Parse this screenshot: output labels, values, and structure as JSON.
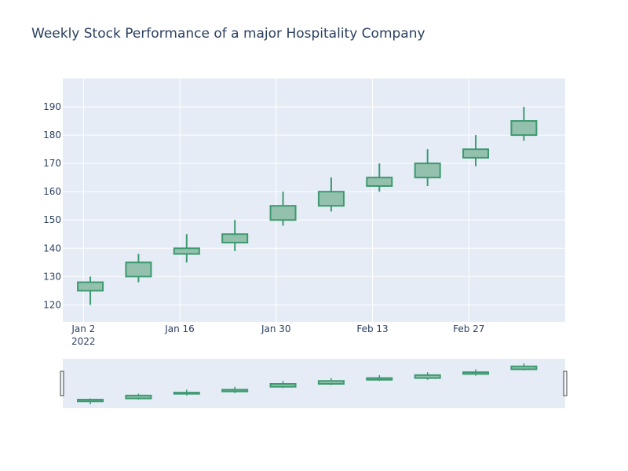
{
  "chart_data": {
    "type": "candlestick",
    "title": "Weekly Stock Performance of a major Hospitality Company",
    "xlabel": "",
    "ylabel": "",
    "x": [
      "2022-01-03",
      "2022-01-10",
      "2022-01-17",
      "2022-01-24",
      "2022-01-31",
      "2022-02-07",
      "2022-02-14",
      "2022-02-21",
      "2022-02-28",
      "2022-03-07"
    ],
    "open": [
      125,
      130,
      138,
      142,
      150,
      155,
      162,
      165,
      172,
      180
    ],
    "high": [
      130,
      138,
      145,
      150,
      160,
      165,
      170,
      175,
      180,
      190
    ],
    "low": [
      120,
      128,
      135,
      139,
      148,
      153,
      160,
      162,
      169,
      178
    ],
    "close": [
      128,
      135,
      140,
      145,
      155,
      160,
      165,
      170,
      175,
      185
    ],
    "x_ticks": [
      {
        "date": "2022-01-02",
        "label": "Jan 2",
        "sublabel": "2022"
      },
      {
        "date": "2022-01-16",
        "label": "Jan 16",
        "sublabel": ""
      },
      {
        "date": "2022-01-30",
        "label": "Jan 30",
        "sublabel": ""
      },
      {
        "date": "2022-02-13",
        "label": "Feb 13",
        "sublabel": ""
      },
      {
        "date": "2022-02-27",
        "label": "Feb 27",
        "sublabel": ""
      }
    ],
    "xlim": [
      "2021-12-30",
      "2022-03-13"
    ],
    "y_ticks": [
      120,
      130,
      140,
      150,
      160,
      170,
      180,
      190
    ],
    "ylim": [
      114,
      200
    ],
    "grid": true,
    "rangeslider": true,
    "colors": {
      "increasing_line": "#3d9970",
      "increasing_fill": "#93c1ad",
      "plot_bg": "#e5ecf6",
      "grid": "#ffffff",
      "text": "#2a3f5f"
    }
  }
}
